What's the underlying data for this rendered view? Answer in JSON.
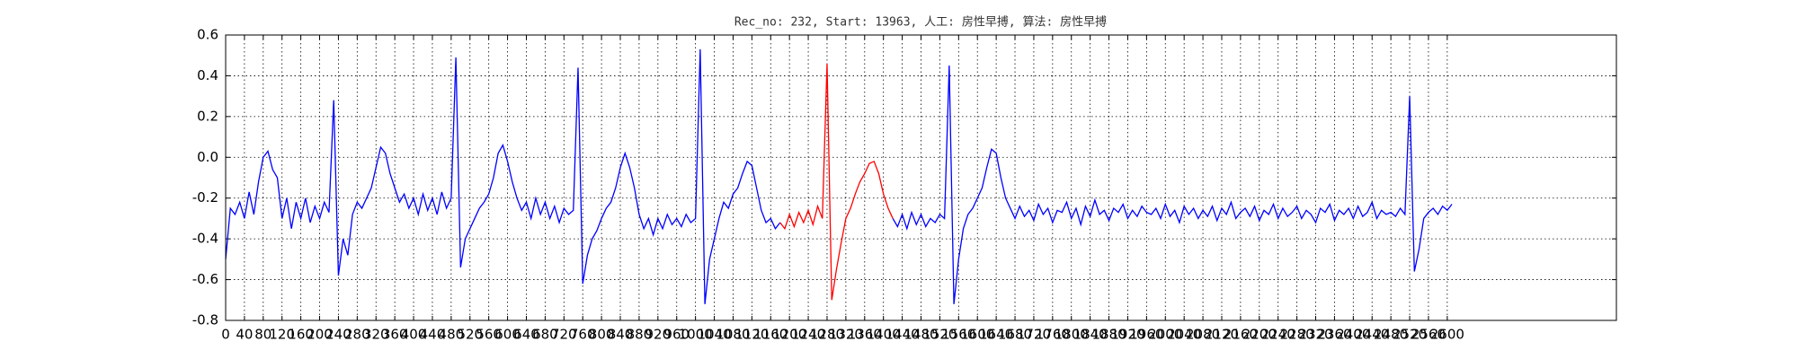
{
  "chart_data": {
    "type": "line",
    "title": "Rec_no: 232, Start: 13963, 人工: 房性早搏, 算法: 房性早搏",
    "xlim": [
      0,
      2960
    ],
    "ylim": [
      -0.8,
      0.6
    ],
    "xticks": [
      0,
      40,
      80,
      120,
      160,
      200,
      240,
      280,
      320,
      360,
      400,
      440,
      480,
      520,
      560,
      600,
      640,
      680,
      720,
      760,
      800,
      840,
      880,
      920,
      960,
      1000,
      1040,
      1080,
      1120,
      1160,
      1200,
      1240,
      1280,
      1320,
      1360,
      1400,
      1440,
      1480,
      1520,
      1560,
      1600,
      1640,
      1680,
      1720,
      1760,
      1800,
      1840,
      1880,
      1920,
      1960,
      2000,
      2040,
      2080,
      2120,
      2160,
      2200,
      2240,
      2280,
      2320,
      2360,
      2400,
      2440,
      2480,
      2520,
      2560,
      2600
    ],
    "yticks": [
      -0.8,
      -0.6,
      -0.4,
      -0.2,
      {
        "value": 0,
        "label": "0.0"
      },
      0.2,
      0.4,
      0.6
    ],
    "grid": true,
    "series": [
      {
        "color": "#0000ff",
        "x": [
          0,
          10,
          20,
          30,
          40,
          50,
          60,
          70,
          80,
          90,
          100,
          110,
          120,
          130,
          140,
          150,
          160,
          170,
          180,
          190,
          200,
          210,
          220,
          230,
          240,
          250,
          260,
          270,
          280,
          290,
          300,
          310,
          320,
          330,
          340,
          350,
          360,
          370,
          380,
          390,
          400,
          410,
          420,
          430,
          440,
          450,
          460,
          470,
          480,
          490,
          500,
          510,
          520,
          530,
          540,
          550,
          560,
          570,
          580,
          590,
          600,
          610,
          620,
          630,
          640,
          650,
          660,
          670,
          680,
          690,
          700,
          710,
          720,
          730,
          740,
          750,
          760,
          770,
          780,
          790,
          800,
          810,
          820,
          830,
          840,
          850,
          860,
          870,
          880,
          890,
          900,
          910,
          920,
          930,
          940,
          950,
          960,
          970,
          980,
          990,
          1000,
          1010,
          1020,
          1030,
          1040,
          1050,
          1060,
          1070,
          1080,
          1090,
          1100,
          1110,
          1120,
          1130,
          1140,
          1150,
          1160,
          1170,
          1180,
          1190,
          1200,
          1210,
          1220,
          1230,
          1240,
          1250,
          1260,
          1270,
          1280,
          1290,
          1300,
          1310,
          1320,
          1330,
          1340,
          1350,
          1360,
          1370,
          1380,
          1390,
          1400,
          1410,
          1420,
          1430,
          1440,
          1450,
          1460,
          1470,
          1480,
          1490,
          1500,
          1510,
          1520,
          1530,
          1540,
          1550,
          1560,
          1570,
          1580,
          1590,
          1600,
          1610,
          1620,
          1630,
          1640,
          1650,
          1660,
          1670,
          1680,
          1690,
          1700,
          1710,
          1720,
          1730,
          1740,
          1750,
          1760,
          1770,
          1780,
          1790,
          1800,
          1810,
          1820,
          1830,
          1840,
          1850,
          1860,
          1870,
          1880,
          1890,
          1900,
          1910,
          1920,
          1930,
          1940,
          1950,
          1960,
          1970,
          1980,
          1990,
          2000,
          2010,
          2020,
          2030,
          2040,
          2050,
          2060,
          2070,
          2080,
          2090,
          2100,
          2110,
          2120,
          2130,
          2140,
          2150,
          2160,
          2170,
          2180,
          2190,
          2200,
          2210,
          2220,
          2230,
          2240,
          2250,
          2260,
          2270,
          2280,
          2290,
          2300,
          2310,
          2320,
          2330,
          2340,
          2350,
          2360,
          2370,
          2380,
          2390,
          2400,
          2410,
          2420,
          2430,
          2440,
          2450,
          2460,
          2470,
          2480,
          2490,
          2500,
          2510,
          2520,
          2530,
          2540,
          2550,
          2560,
          2570,
          2580,
          2590,
          2600,
          2610
        ],
        "values": [
          -0.5,
          -0.25,
          -0.28,
          -0.22,
          -0.3,
          -0.17,
          -0.28,
          -0.12,
          0.0,
          0.03,
          -0.06,
          -0.1,
          -0.3,
          -0.2,
          -0.35,
          -0.22,
          -0.3,
          -0.2,
          -0.32,
          -0.24,
          -0.3,
          -0.22,
          -0.27,
          0.28,
          -0.58,
          -0.4,
          -0.48,
          -0.28,
          -0.22,
          -0.25,
          -0.2,
          -0.15,
          -0.05,
          0.05,
          0.02,
          -0.08,
          -0.15,
          -0.22,
          -0.18,
          -0.25,
          -0.2,
          -0.28,
          -0.18,
          -0.26,
          -0.2,
          -0.28,
          -0.17,
          -0.25,
          -0.2,
          0.49,
          -0.54,
          -0.4,
          -0.35,
          -0.3,
          -0.25,
          -0.22,
          -0.18,
          -0.1,
          0.02,
          0.06,
          -0.02,
          -0.12,
          -0.2,
          -0.26,
          -0.22,
          -0.3,
          -0.2,
          -0.28,
          -0.22,
          -0.3,
          -0.24,
          -0.32,
          -0.25,
          -0.28,
          -0.26,
          0.44,
          -0.62,
          -0.48,
          -0.4,
          -0.36,
          -0.3,
          -0.25,
          -0.22,
          -0.15,
          -0.05,
          0.02,
          -0.05,
          -0.15,
          -0.28,
          -0.35,
          -0.3,
          -0.38,
          -0.3,
          -0.35,
          -0.28,
          -0.33,
          -0.3,
          -0.34,
          -0.28,
          -0.32,
          -0.3,
          0.53,
          -0.72,
          -0.5,
          -0.4,
          -0.3,
          -0.22,
          -0.25,
          -0.18,
          -0.15,
          -0.08,
          -0.02,
          -0.04,
          -0.15,
          -0.26,
          -0.32,
          -0.3,
          -0.35,
          -0.32,
          null,
          null,
          null,
          null,
          null,
          null,
          null,
          null,
          null,
          null,
          null,
          null,
          null,
          null,
          null,
          null,
          null,
          null,
          null,
          null,
          null,
          null,
          null,
          -0.3,
          -0.34,
          -0.28,
          -0.35,
          -0.27,
          -0.33,
          -0.28,
          -0.34,
          -0.3,
          -0.32,
          -0.28,
          -0.3,
          0.45,
          -0.72,
          -0.5,
          -0.35,
          -0.28,
          -0.25,
          -0.2,
          -0.15,
          -0.05,
          0.04,
          0.02,
          -0.1,
          -0.2,
          -0.25,
          -0.3,
          -0.24,
          -0.29,
          -0.26,
          -0.31,
          -0.23,
          -0.28,
          -0.25,
          -0.32,
          -0.26,
          -0.27,
          -0.22,
          -0.3,
          -0.25,
          -0.33,
          -0.24,
          -0.29,
          -0.21,
          -0.28,
          -0.26,
          -0.31,
          -0.25,
          -0.27,
          -0.23,
          -0.3,
          -0.26,
          -0.29,
          -0.24,
          -0.27,
          -0.28,
          -0.25,
          -0.3,
          -0.23,
          -0.29,
          -0.26,
          -0.32,
          -0.24,
          -0.28,
          -0.25,
          -0.3,
          -0.26,
          -0.29,
          -0.24,
          -0.31,
          -0.25,
          -0.28,
          -0.22,
          -0.3,
          -0.27,
          -0.25,
          -0.29,
          -0.24,
          -0.31,
          -0.26,
          -0.28,
          -0.23,
          -0.3,
          -0.25,
          -0.29,
          -0.27,
          -0.24,
          -0.3,
          -0.26,
          -0.28,
          -0.32,
          -0.25,
          -0.27,
          -0.23,
          -0.31,
          -0.26,
          -0.28,
          -0.25,
          -0.3,
          -0.24,
          -0.29,
          -0.27,
          -0.22,
          -0.3,
          -0.26,
          -0.28,
          -0.27,
          -0.29,
          -0.25,
          -0.28,
          0.3,
          -0.56,
          -0.45,
          -0.3,
          -0.27,
          -0.25,
          -0.28,
          -0.24,
          -0.26,
          -0.23
        ]
      },
      {
        "color": "#ff0000",
        "x": [
          1180,
          1190,
          1200,
          1210,
          1220,
          1230,
          1240,
          1250,
          1260,
          1270,
          1280,
          1290,
          1300,
          1310,
          1320,
          1330,
          1340,
          1350,
          1360,
          1370,
          1380,
          1390,
          1400,
          1410,
          1420
        ],
        "values": [
          -0.32,
          -0.35,
          -0.28,
          -0.34,
          -0.27,
          -0.32,
          -0.26,
          -0.33,
          -0.24,
          -0.3,
          0.46,
          -0.7,
          -0.55,
          -0.42,
          -0.3,
          -0.25,
          -0.18,
          -0.12,
          -0.08,
          -0.03,
          -0.02,
          -0.08,
          -0.18,
          -0.25,
          -0.3
        ]
      }
    ]
  }
}
